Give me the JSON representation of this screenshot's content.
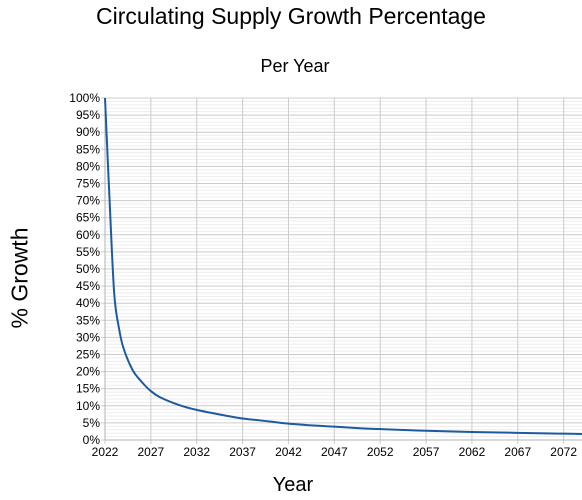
{
  "chart_data": {
    "type": "line",
    "title": "Circulating Supply Growth Percentage",
    "subtitle": "Per Year",
    "xlabel": "Year",
    "ylabel": "% Growth",
    "xlim": [
      2022,
      2074
    ],
    "ylim": [
      0,
      100
    ],
    "x_ticks": [
      "2022",
      "2027",
      "2032",
      "2037",
      "2042",
      "2047",
      "2052",
      "2057",
      "2062",
      "2067",
      "2072"
    ],
    "y_ticks": [
      "0%",
      "5%",
      "10%",
      "15%",
      "20%",
      "25%",
      "30%",
      "35%",
      "40%",
      "45%",
      "50%",
      "55%",
      "60%",
      "65%",
      "70%",
      "75%",
      "80%",
      "85%",
      "90%",
      "95%",
      "100%"
    ],
    "grid": true,
    "line_color": "#1f5aa0",
    "series": [
      {
        "name": "",
        "x": [
          2022,
          2022.5,
          2023,
          2023.5,
          2024,
          2025,
          2026,
          2027,
          2028,
          2030,
          2032,
          2035,
          2037,
          2040,
          2042,
          2045,
          2047,
          2050,
          2052,
          2055,
          2057,
          2060,
          2062,
          2065,
          2067,
          2070,
          2072,
          2074
        ],
        "values": [
          100,
          70,
          43,
          33,
          27,
          20.5,
          17,
          14.3,
          12.5,
          10.3,
          8.8,
          7.2,
          6.3,
          5.4,
          4.8,
          4.2,
          3.9,
          3.4,
          3.2,
          2.9,
          2.7,
          2.5,
          2.35,
          2.2,
          2.1,
          1.95,
          1.85,
          1.75
        ]
      }
    ]
  }
}
